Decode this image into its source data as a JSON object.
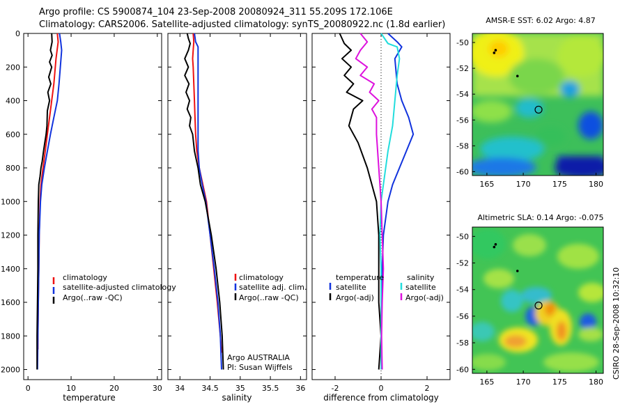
{
  "header": {
    "line1": "Argo profile: CS 5900874_104 23-Sep-2008 20080924_311 55.209S 172.106E",
    "line2": "Climatology: CARS2006. Satellite-adjusted climatology: synTS_20080922.nc (1.8d earlier)"
  },
  "side_label": "CSIRO 28-Sep-2008 10:32:10",
  "chart_data": [
    {
      "type": "line",
      "xlabel": "temperature",
      "xlim": [
        -1,
        31
      ],
      "xticks": [
        0,
        10,
        20,
        30
      ],
      "ylim": [
        0,
        2060
      ],
      "yticks": [
        0,
        200,
        400,
        600,
        800,
        1000,
        1200,
        1400,
        1600,
        1800,
        2000
      ],
      "y_reversed": true,
      "legend": [
        "climatology",
        "satellite-adjusted climatology",
        "Argo(..raw -QC)"
      ],
      "series": [
        {
          "name": "climatology",
          "color": "#ee1111",
          "points": [
            [
              6.8,
              0
            ],
            [
              7.0,
              50
            ],
            [
              6.5,
              150
            ],
            [
              6.0,
              300
            ],
            [
              5.5,
              400
            ],
            [
              5.0,
              500
            ],
            [
              4.5,
              600
            ],
            [
              4.0,
              700
            ],
            [
              3.5,
              800
            ],
            [
              3.0,
              900
            ],
            [
              2.8,
              1000
            ],
            [
              2.6,
              1200
            ],
            [
              2.5,
              1400
            ],
            [
              2.4,
              1600
            ],
            [
              2.3,
              1800
            ],
            [
              2.3,
              1880
            ]
          ]
        },
        {
          "name": "satellite-adjusted climatology",
          "color": "#1133dd",
          "points": [
            [
              7.3,
              0
            ],
            [
              7.6,
              50
            ],
            [
              7.8,
              100
            ],
            [
              7.5,
              200
            ],
            [
              7.2,
              300
            ],
            [
              6.8,
              400
            ],
            [
              6.0,
              500
            ],
            [
              5.2,
              600
            ],
            [
              4.5,
              700
            ],
            [
              3.8,
              800
            ],
            [
              3.2,
              900
            ],
            [
              2.9,
              1000
            ],
            [
              2.6,
              1200
            ],
            [
              2.5,
              1400
            ],
            [
              2.4,
              1600
            ],
            [
              2.3,
              1800
            ],
            [
              2.2,
              2000
            ]
          ]
        },
        {
          "name": "Argo(..raw -QC)",
          "color": "#000000",
          "points": [
            [
              5.5,
              0
            ],
            [
              5.6,
              50
            ],
            [
              5.2,
              100
            ],
            [
              5.6,
              130
            ],
            [
              5.0,
              170
            ],
            [
              5.5,
              200
            ],
            [
              4.8,
              260
            ],
            [
              5.3,
              300
            ],
            [
              4.6,
              350
            ],
            [
              5.0,
              400
            ],
            [
              4.5,
              460
            ],
            [
              4.4,
              550
            ],
            [
              4.2,
              600
            ],
            [
              3.9,
              650
            ],
            [
              3.6,
              700
            ],
            [
              3.3,
              760
            ],
            [
              3.0,
              800
            ],
            [
              2.8,
              850
            ],
            [
              2.5,
              900
            ],
            [
              2.4,
              1000
            ],
            [
              2.3,
              1200
            ],
            [
              2.3,
              1400
            ],
            [
              2.2,
              1600
            ],
            [
              2.1,
              1800
            ],
            [
              2.1,
              2000
            ]
          ]
        }
      ]
    },
    {
      "type": "line",
      "xlabel": "salinity",
      "xlim": [
        33.8,
        36.1
      ],
      "xticks": [
        34,
        34.5,
        35,
        35.5,
        36
      ],
      "ylim": [
        0,
        2060
      ],
      "yticks": [
        0,
        200,
        400,
        600,
        800,
        1000,
        1200,
        1400,
        1600,
        1800,
        2000
      ],
      "y_reversed": true,
      "legend": [
        "climatology",
        "satellite adj. clim.",
        "Argo(..raw -QC)"
      ],
      "annotations": [
        "Argo AUSTRALIA",
        "PI: Susan Wijffels"
      ],
      "series": [
        {
          "name": "climatology",
          "color": "#ee1111",
          "points": [
            [
              34.22,
              0
            ],
            [
              34.23,
              50
            ],
            [
              34.22,
              100
            ],
            [
              34.21,
              150
            ],
            [
              34.22,
              200
            ],
            [
              34.23,
              300
            ],
            [
              34.24,
              400
            ],
            [
              34.25,
              500
            ],
            [
              34.26,
              600
            ],
            [
              34.28,
              700
            ],
            [
              34.32,
              800
            ],
            [
              34.38,
              900
            ],
            [
              34.44,
              1000
            ],
            [
              34.5,
              1200
            ],
            [
              34.56,
              1400
            ],
            [
              34.62,
              1600
            ],
            [
              34.67,
              1800
            ],
            [
              34.69,
              1900
            ]
          ]
        },
        {
          "name": "satellite adj. clim.",
          "color": "#1133dd",
          "points": [
            [
              34.24,
              0
            ],
            [
              34.26,
              50
            ],
            [
              34.3,
              80
            ],
            [
              34.3,
              150
            ],
            [
              34.3,
              200
            ],
            [
              34.3,
              300
            ],
            [
              34.3,
              400
            ],
            [
              34.3,
              500
            ],
            [
              34.3,
              600
            ],
            [
              34.3,
              700
            ],
            [
              34.32,
              800
            ],
            [
              34.37,
              900
            ],
            [
              34.43,
              1000
            ],
            [
              34.5,
              1200
            ],
            [
              34.57,
              1400
            ],
            [
              34.63,
              1600
            ],
            [
              34.67,
              1800
            ],
            [
              34.69,
              2000
            ]
          ]
        },
        {
          "name": "Argo(..raw -QC)",
          "color": "#000000",
          "points": [
            [
              34.12,
              0
            ],
            [
              34.14,
              30
            ],
            [
              34.17,
              60
            ],
            [
              34.14,
              100
            ],
            [
              34.08,
              150
            ],
            [
              34.14,
              200
            ],
            [
              34.08,
              250
            ],
            [
              34.15,
              300
            ],
            [
              34.1,
              350
            ],
            [
              34.16,
              400
            ],
            [
              34.12,
              450
            ],
            [
              34.18,
              500
            ],
            [
              34.16,
              550
            ],
            [
              34.21,
              600
            ],
            [
              34.24,
              700
            ],
            [
              34.3,
              800
            ],
            [
              34.34,
              900
            ],
            [
              34.42,
              1000
            ],
            [
              34.52,
              1200
            ],
            [
              34.6,
              1400
            ],
            [
              34.66,
              1600
            ],
            [
              34.7,
              1800
            ],
            [
              34.72,
              2000
            ]
          ]
        }
      ]
    },
    {
      "type": "line",
      "xlabel": "difference from climatology",
      "xlim": [
        -3.0,
        3.0
      ],
      "xticks": [
        -2,
        0,
        2
      ],
      "ylim": [
        0,
        2060
      ],
      "yticks": [
        0,
        200,
        400,
        600,
        800,
        1000,
        1200,
        1400,
        1600,
        1800,
        2000
      ],
      "y_reversed": true,
      "legend_headers": [
        "temperature",
        "salinity"
      ],
      "legend": [
        "satellite",
        "Argo(-adj)",
        "satellite",
        "Argo(-adj)"
      ],
      "series": [
        {
          "name": "satellite",
          "group": "temperature",
          "color": "#1133dd",
          "points": [
            [
              0.3,
              0
            ],
            [
              0.7,
              50
            ],
            [
              0.9,
              80
            ],
            [
              0.6,
              150
            ],
            [
              0.7,
              300
            ],
            [
              0.9,
              400
            ],
            [
              1.2,
              500
            ],
            [
              1.4,
              600
            ],
            [
              1.1,
              700
            ],
            [
              0.8,
              800
            ],
            [
              0.5,
              900
            ],
            [
              0.3,
              1000
            ],
            [
              0.1,
              1200
            ],
            [
              0.05,
              1400
            ],
            [
              0.02,
              1600
            ],
            [
              0.0,
              1800
            ],
            [
              0.0,
              2000
            ]
          ]
        },
        {
          "name": "Argo(-adj)",
          "group": "temperature",
          "color": "#000000",
          "points": [
            [
              -1.8,
              0
            ],
            [
              -1.6,
              60
            ],
            [
              -1.3,
              100
            ],
            [
              -1.7,
              150
            ],
            [
              -1.3,
              200
            ],
            [
              -1.6,
              250
            ],
            [
              -1.2,
              300
            ],
            [
              -1.5,
              350
            ],
            [
              -0.8,
              400
            ],
            [
              -1.2,
              450
            ],
            [
              -1.4,
              550
            ],
            [
              -1.0,
              650
            ],
            [
              -0.6,
              800
            ],
            [
              -0.2,
              1000
            ],
            [
              -0.1,
              1200
            ],
            [
              -0.1,
              1400
            ],
            [
              -0.1,
              1600
            ],
            [
              0.0,
              1800
            ],
            [
              -0.1,
              2000
            ]
          ]
        },
        {
          "name": "satellite",
          "group": "salinity",
          "color": "#22dddd",
          "points": [
            [
              0.0,
              0
            ],
            [
              0.3,
              60
            ],
            [
              0.7,
              80
            ],
            [
              0.8,
              150
            ],
            [
              0.7,
              250
            ],
            [
              0.6,
              400
            ],
            [
              0.5,
              550
            ],
            [
              0.3,
              700
            ],
            [
              0.2,
              800
            ],
            [
              0.1,
              900
            ],
            [
              0.0,
              1000
            ],
            [
              -0.05,
              1200
            ],
            [
              0.0,
              1400
            ],
            [
              0.0,
              1600
            ],
            [
              0.0,
              1800
            ],
            [
              0.0,
              2000
            ]
          ]
        },
        {
          "name": "Argo(-adj)",
          "group": "salinity",
          "color": "#dd11dd",
          "points": [
            [
              -0.9,
              0
            ],
            [
              -0.6,
              50
            ],
            [
              -0.9,
              100
            ],
            [
              -1.1,
              150
            ],
            [
              -0.6,
              200
            ],
            [
              -0.9,
              250
            ],
            [
              -0.3,
              300
            ],
            [
              -0.5,
              350
            ],
            [
              -0.1,
              400
            ],
            [
              -0.4,
              450
            ],
            [
              -0.2,
              500
            ],
            [
              -0.2,
              600
            ],
            [
              -0.1,
              800
            ],
            [
              0.0,
              1000
            ],
            [
              0.05,
              1200
            ],
            [
              0.1,
              1400
            ],
            [
              0.05,
              1600
            ],
            [
              0.02,
              1800
            ],
            [
              0.05,
              2000
            ]
          ]
        }
      ]
    },
    {
      "type": "heatmap",
      "title": "AMSR-E SST: 6.02 Argo: 4.87",
      "xlim": [
        163,
        181
      ],
      "ylim": [
        -60.3,
        -49.3
      ],
      "xticks": [
        165,
        170,
        175,
        180
      ],
      "yticks": [
        -50,
        -52,
        -54,
        -56,
        -58,
        -60
      ],
      "marker": {
        "lon": 172.1,
        "lat": -55.2
      },
      "track": [
        [
          166.0,
          -50.8
        ],
        [
          166.2,
          -50.6
        ],
        [
          169.2,
          -52.6
        ]
      ]
    },
    {
      "type": "heatmap",
      "title": "Altimetric SLA: 0.14 Argo: -0.075",
      "xlim": [
        163,
        181
      ],
      "ylim": [
        -60.3,
        -49.3
      ],
      "xticks": [
        165,
        170,
        175,
        180
      ],
      "yticks": [
        -50,
        -52,
        -54,
        -56,
        -58,
        -60
      ],
      "marker": {
        "lon": 172.1,
        "lat": -55.2
      },
      "track": [
        [
          166.0,
          -50.8
        ],
        [
          166.2,
          -50.6
        ],
        [
          169.2,
          -52.6
        ]
      ]
    }
  ]
}
